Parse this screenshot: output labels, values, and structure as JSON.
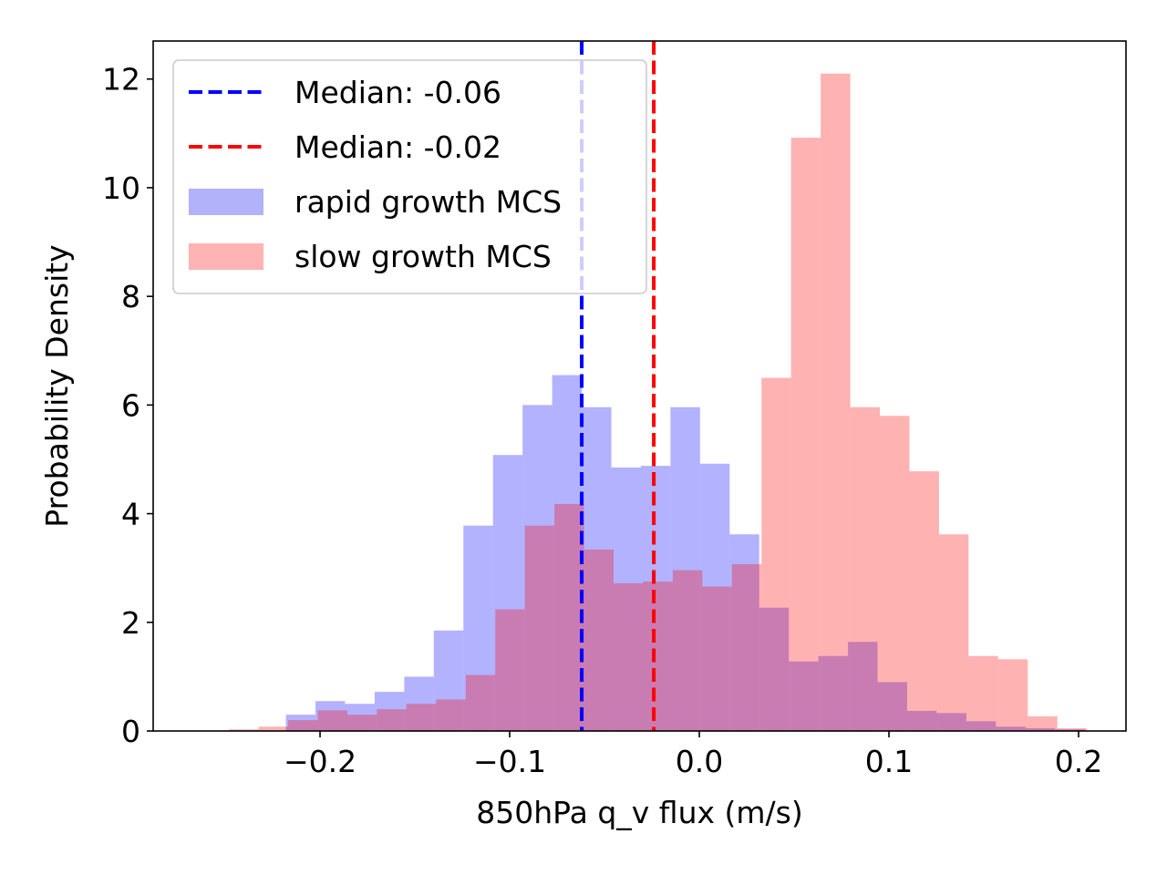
{
  "chart_data": {
    "type": "histogram",
    "xlabel": "850hPa q_v flux (m/s)",
    "ylabel": "Probability Density",
    "xlim": [
      -0.288,
      0.225
    ],
    "ylim": [
      0,
      12.7
    ],
    "xticks": [
      -0.2,
      -0.1,
      0.0,
      0.1,
      0.2
    ],
    "xtick_labels": [
      "−0.2",
      "−0.1",
      "0.0",
      "0.1",
      "0.2"
    ],
    "yticks": [
      0,
      2,
      4,
      6,
      8,
      10,
      12
    ],
    "ytick_labels": [
      "0",
      "2",
      "4",
      "6",
      "8",
      "10",
      "12"
    ],
    "grid": false,
    "legend_position": "top-left",
    "legend": [
      {
        "label": "Median: -0.06",
        "kind": "dashed-line",
        "color": "#0000ff"
      },
      {
        "label": "Median: -0.02",
        "kind": "dashed-line",
        "color": "#ff0000"
      },
      {
        "label": "rapid growth MCS",
        "kind": "patch",
        "color": "#b2b2fa"
      },
      {
        "label": "slow growth MCS",
        "kind": "patch",
        "color": "#ffb3b3"
      }
    ],
    "series": [
      {
        "name": "rapid growth MCS",
        "color": "#0000ff",
        "alpha": 0.3,
        "bin_width": 0.0156,
        "bins": [
          {
            "x0": -0.218,
            "y": 0.3
          },
          {
            "x0": -0.2024,
            "y": 0.55
          },
          {
            "x0": -0.1868,
            "y": 0.5
          },
          {
            "x0": -0.1712,
            "y": 0.72
          },
          {
            "x0": -0.1556,
            "y": 1.0
          },
          {
            "x0": -0.14,
            "y": 1.85
          },
          {
            "x0": -0.1244,
            "y": 3.78
          },
          {
            "x0": -0.1088,
            "y": 5.08
          },
          {
            "x0": -0.0932,
            "y": 6.0
          },
          {
            "x0": -0.0776,
            "y": 6.55
          },
          {
            "x0": -0.062,
            "y": 5.96
          },
          {
            "x0": -0.0464,
            "y": 4.85
          },
          {
            "x0": -0.0308,
            "y": 4.88
          },
          {
            "x0": -0.0152,
            "y": 5.96
          },
          {
            "x0": 0.0004,
            "y": 4.92
          },
          {
            "x0": 0.016,
            "y": 3.62
          },
          {
            "x0": 0.0316,
            "y": 2.27
          },
          {
            "x0": 0.0472,
            "y": 1.28
          },
          {
            "x0": 0.0628,
            "y": 1.38
          },
          {
            "x0": 0.0784,
            "y": 1.64
          },
          {
            "x0": 0.094,
            "y": 0.9
          },
          {
            "x0": 0.1096,
            "y": 0.37
          },
          {
            "x0": 0.1252,
            "y": 0.33
          },
          {
            "x0": 0.1408,
            "y": 0.18
          },
          {
            "x0": 0.1564,
            "y": 0.08
          },
          {
            "x0": 0.172,
            "y": 0.05
          },
          {
            "x0": 0.1876,
            "y": 0.03
          }
        ]
      },
      {
        "name": "slow growth MCS",
        "color": "#ff0000",
        "alpha": 0.3,
        "bin_width": 0.0156,
        "bins": [
          {
            "x0": -0.248,
            "y": 0.03
          },
          {
            "x0": -0.2324,
            "y": 0.08
          },
          {
            "x0": -0.2168,
            "y": 0.2
          },
          {
            "x0": -0.2012,
            "y": 0.38
          },
          {
            "x0": -0.1856,
            "y": 0.3
          },
          {
            "x0": -0.17,
            "y": 0.4
          },
          {
            "x0": -0.1544,
            "y": 0.5
          },
          {
            "x0": -0.1388,
            "y": 0.58
          },
          {
            "x0": -0.1232,
            "y": 1.03
          },
          {
            "x0": -0.1076,
            "y": 2.24
          },
          {
            "x0": -0.092,
            "y": 3.78
          },
          {
            "x0": -0.0764,
            "y": 4.18
          },
          {
            "x0": -0.0608,
            "y": 3.34
          },
          {
            "x0": -0.0452,
            "y": 2.72
          },
          {
            "x0": -0.0296,
            "y": 2.75
          },
          {
            "x0": -0.014,
            "y": 2.96
          },
          {
            "x0": 0.0016,
            "y": 2.66
          },
          {
            "x0": 0.0172,
            "y": 3.07
          },
          {
            "x0": 0.0328,
            "y": 6.5
          },
          {
            "x0": 0.0484,
            "y": 10.92
          },
          {
            "x0": 0.064,
            "y": 12.1
          },
          {
            "x0": 0.0796,
            "y": 5.96
          },
          {
            "x0": 0.0952,
            "y": 5.8
          },
          {
            "x0": 0.1108,
            "y": 4.78
          },
          {
            "x0": 0.1264,
            "y": 3.62
          },
          {
            "x0": 0.142,
            "y": 1.38
          },
          {
            "x0": 0.1576,
            "y": 1.32
          },
          {
            "x0": 0.1732,
            "y": 0.27
          },
          {
            "x0": 0.1888,
            "y": 0.05
          }
        ]
      }
    ],
    "vlines": [
      {
        "name": "Median: -0.06",
        "x": -0.062,
        "color": "#0000ff",
        "style": "dashed"
      },
      {
        "name": "Median: -0.02",
        "x": -0.024,
        "color": "#ff0000",
        "style": "dashed"
      }
    ]
  }
}
